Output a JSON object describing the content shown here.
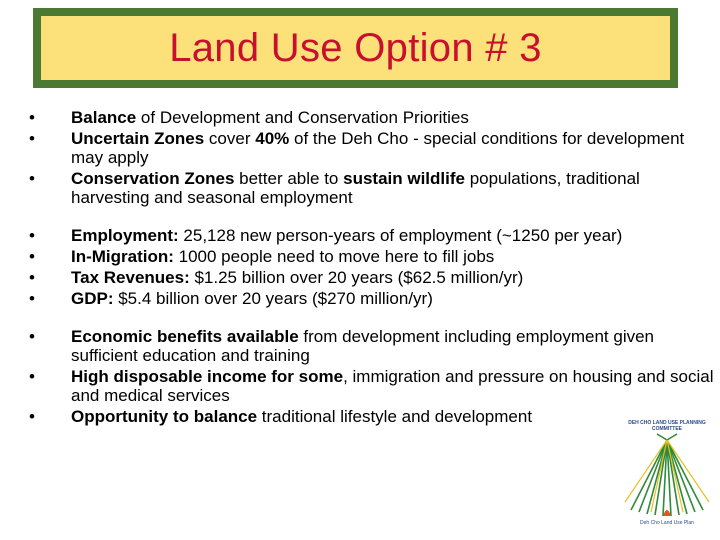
{
  "title": "Land Use Option # 3",
  "groups": [
    {
      "items": [
        {
          "bold": "Balance",
          "text": " of Development and Conservation Priorities"
        },
        {
          "bold": "Uncertain Zones",
          "text": " cover ",
          "bold2": "40%",
          "text2": " of the Deh Cho - special conditions for development may apply"
        },
        {
          "bold": "Conservation Zones",
          "text": " better able to ",
          "bold2": "sustain wildlife",
          "text2": " populations, traditional harvesting and seasonal employment"
        }
      ]
    },
    {
      "items": [
        {
          "bold": "Employment:",
          "text": " 25,128 new person-years of employment (~1250 per year)"
        },
        {
          "bold": "In-Migration:",
          "text": " 1000 people need to move here to fill jobs"
        },
        {
          "bold": "Tax Revenues:",
          "text": " $1.25 billion over 20 years ($62.5 million/yr)"
        },
        {
          "bold": "GDP:",
          "text": " $5.4 billion over 20 years ($270 million/yr)"
        }
      ]
    },
    {
      "items": [
        {
          "bold": "Economic benefits available",
          "text": " from development including employment given sufficient education and training"
        },
        {
          "bold": "High disposable income for some",
          "text": ", immigration and pressure on housing and social and medical services"
        },
        {
          "bold": "Opportunity to balance",
          "text": " traditional lifestyle and development"
        }
      ]
    }
  ],
  "bullet_char": "•",
  "logo": {
    "icon": "deh-cho-land-use-plan-logo",
    "header": "DEH CHO LAND USE PLANNING COMMITTEE",
    "footer": "Deh Cho Land Use Plan"
  },
  "colors": {
    "title_text": "#c8102e",
    "title_bg": "#fce07a",
    "title_border": "#4a7a32"
  }
}
